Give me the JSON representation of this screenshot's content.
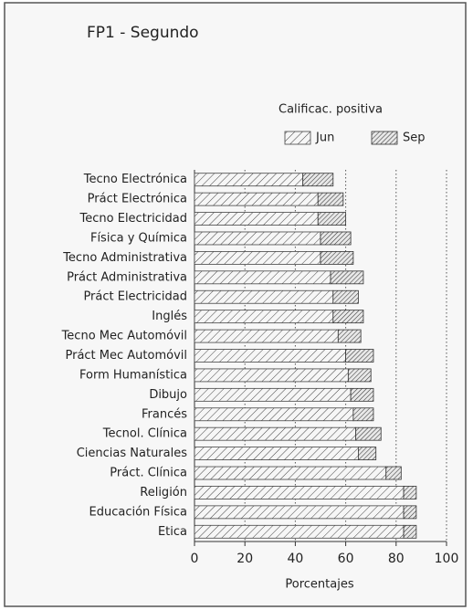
{
  "chart_data": {
    "type": "stacked-bar-horizontal",
    "title": "FP1 - Segundo",
    "legend_title": "Calificac. positiva",
    "xlabel": "Porcentajes",
    "categories": [
      "Tecno Electrónica",
      "Práct Electrónica",
      "Tecno Electricidad",
      "Física y Química",
      "Tecno Administrativa",
      "Práct Administrativa",
      "Práct Electricidad",
      "Inglés",
      "Tecno Mec Automóvil",
      "Práct Mec Automóvil",
      "Form Humanística",
      "Dibujo",
      "Francés",
      "Tecnol. Clínica",
      "Ciencias Naturales",
      "Práct. Clínica",
      "Religión",
      "Educación Física",
      "Etica"
    ],
    "series": [
      {
        "name": "Jun",
        "color": "#444",
        "values": [
          43,
          49,
          49,
          50,
          50,
          54,
          55,
          55,
          57,
          60,
          61,
          62,
          63,
          64,
          65,
          76,
          83,
          83,
          83
        ]
      },
      {
        "name": "Sep",
        "color": "#333",
        "values": [
          12,
          10,
          11,
          12,
          13,
          13,
          10,
          12,
          9,
          11,
          9,
          9,
          8,
          10,
          7,
          6,
          5,
          5,
          5
        ]
      }
    ],
    "xlim": [
      0,
      100
    ],
    "xticks": [
      0,
      20,
      40,
      60,
      80,
      100
    ],
    "grid": true
  }
}
